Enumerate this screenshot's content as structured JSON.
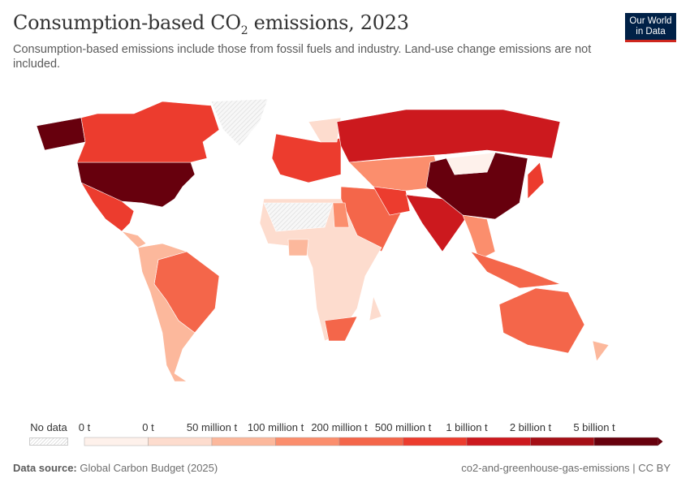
{
  "header": {
    "title_main": "Consumption-based CO",
    "title_sub": "2",
    "title_end": " emissions, 2023",
    "subtitle": "Consumption-based emissions include those from fossil fuels and industry. Land-use change emissions are not included.",
    "logo_line1": "Our World",
    "logo_line2": "in Data"
  },
  "chart_data": {
    "type": "choropleth",
    "title": "Consumption-based CO2 emissions, 2023",
    "legend": {
      "no_data_label": "No data",
      "labels": [
        "0 t",
        "0 t",
        "50 million t",
        "100 million t",
        "200 million t",
        "500 million t",
        "1 billion t",
        "2 billion t",
        "5 billion t"
      ],
      "colors": [
        "#fef1eb",
        "#fddcce",
        "#fcb89c",
        "#fb8e6d",
        "#f4664a",
        "#ec3c2e",
        "#cc191e",
        "#a50f16",
        "#67000d"
      ],
      "no_data_color": "#eeeeee"
    },
    "countries": {
      "United States": 8,
      "Alaska (US)": 8,
      "Canada": 5,
      "Greenland": -1,
      "Mexico": 5,
      "Central America": 2,
      "Brazil": 4,
      "Rest of South America": 2,
      "Western Europe": 5,
      "Scandinavia": 1,
      "Russia": 6,
      "Central Asia": 3,
      "Middle East": 4,
      "Iran": 5,
      "India": 6,
      "China": 8,
      "Mongolia": 0,
      "Japan": 5,
      "Mainland Southeast Asia": 3,
      "Indonesia": 4,
      "Australia": 4,
      "New Zealand": 2,
      "Africa": 1,
      "Sahara region": -1,
      "Egypt": 3,
      "Nigeria": 2,
      "South Africa": 4,
      "Madagascar": 1
    }
  },
  "footer": {
    "source_label": "Data source:",
    "source": "Global Carbon Budget (2025)",
    "slug": "co2-and-greenhouse-gas-emissions | CC BY"
  }
}
